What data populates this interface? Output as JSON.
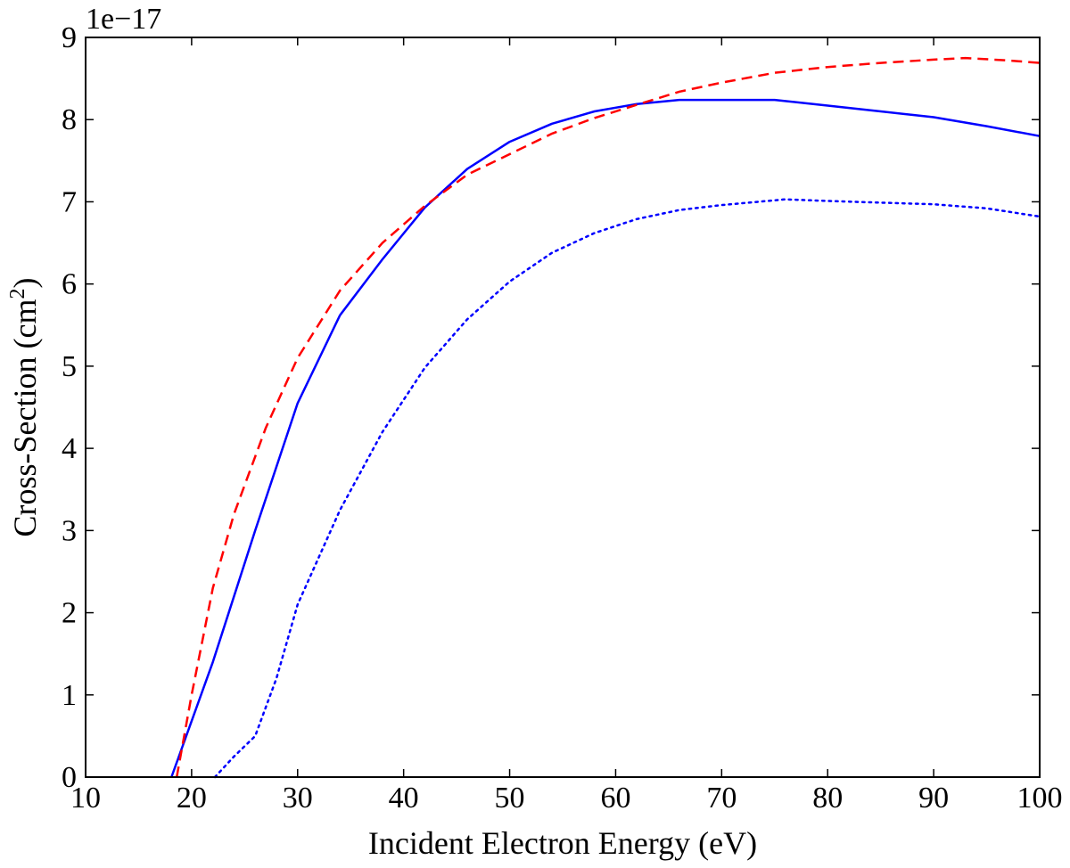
{
  "chart_data": {
    "type": "line",
    "title": "",
    "xlabel": "Incident Electron Energy (eV)",
    "ylabel": {
      "main": "Cross-Section (cm",
      "sup": "2",
      "close": ")"
    },
    "y_offset_label": "1e−17",
    "xlim": [
      10,
      100
    ],
    "ylim": [
      0,
      9
    ],
    "xticks": [
      10,
      20,
      30,
      40,
      50,
      60,
      70,
      80,
      90,
      100
    ],
    "yticks": [
      0,
      1,
      2,
      3,
      4,
      5,
      6,
      7,
      8,
      9
    ],
    "grid": false,
    "legend": null,
    "series": [
      {
        "name": "solid-blue",
        "color": "#0000ff",
        "style": "solid",
        "x": [
          18.1,
          22,
          26,
          30,
          34,
          38,
          42,
          46,
          50,
          54,
          58,
          62,
          66,
          70,
          75,
          80,
          85,
          90,
          95,
          100
        ],
        "y": [
          0,
          1.4,
          3.0,
          4.55,
          5.62,
          6.3,
          6.93,
          7.4,
          7.73,
          7.95,
          8.1,
          8.19,
          8.24,
          8.24,
          8.24,
          8.17,
          8.1,
          8.03,
          7.92,
          7.8
        ]
      },
      {
        "name": "dashed-red",
        "color": "#ff0000",
        "style": "dashed",
        "x": [
          18.6,
          20,
          22,
          24,
          27,
          30,
          34,
          38,
          42,
          46,
          50,
          54,
          58,
          62,
          66,
          70,
          75,
          80,
          85,
          90,
          93,
          97,
          100
        ],
        "y": [
          0,
          1.0,
          2.3,
          3.2,
          4.25,
          5.1,
          5.92,
          6.5,
          6.95,
          7.33,
          7.58,
          7.83,
          8.02,
          8.18,
          8.34,
          8.45,
          8.57,
          8.64,
          8.69,
          8.73,
          8.75,
          8.72,
          8.69
        ]
      },
      {
        "name": "dotted-blue",
        "color": "#0000ff",
        "style": "dotted",
        "x": [
          22.2,
          24,
          26,
          28,
          30,
          34,
          38,
          42,
          46,
          50,
          54,
          58,
          62,
          66,
          70,
          76,
          80,
          85,
          90,
          95,
          100
        ],
        "y": [
          0,
          0.25,
          0.5,
          1.2,
          2.1,
          3.25,
          4.2,
          4.98,
          5.57,
          6.03,
          6.38,
          6.62,
          6.79,
          6.9,
          6.96,
          7.03,
          7.01,
          6.99,
          6.97,
          6.92,
          6.82
        ]
      }
    ]
  }
}
